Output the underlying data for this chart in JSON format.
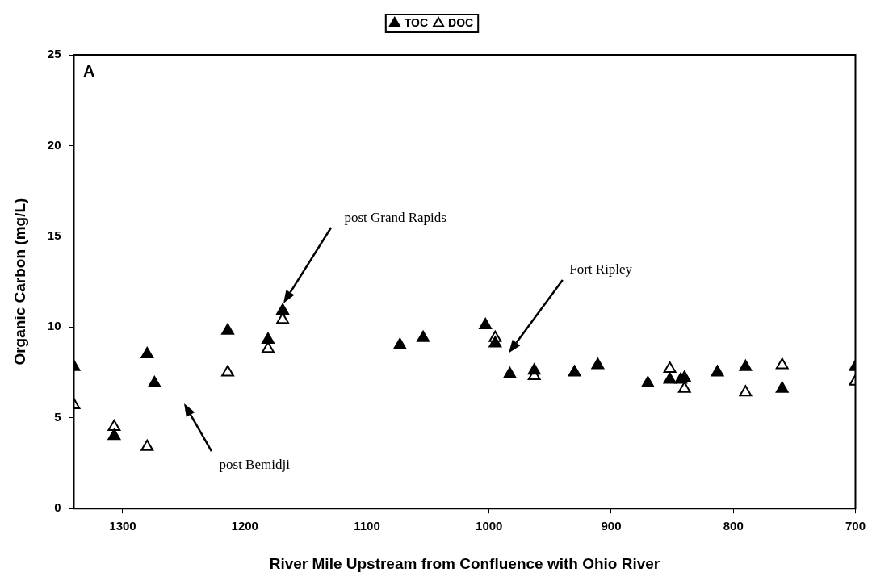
{
  "chart_data": {
    "type": "scatter",
    "xlabel": "River Mile Upstream from Confluence with Ohio River",
    "ylabel": "Organic Carbon (mg/L)",
    "xlim": [
      1340,
      700
    ],
    "xticks": [
      1300,
      1200,
      1100,
      1000,
      900,
      800,
      700
    ],
    "ylim": [
      0,
      25
    ],
    "yticks": [
      0,
      5,
      10,
      15,
      20,
      25
    ],
    "grid": false,
    "legend": "top",
    "marker": "triangle",
    "annotations": [
      "A",
      "post Grand Rapids",
      "post Bemidji",
      "Fort Ripley"
    ],
    "series": [
      {
        "name": "TOC",
        "color": "#000000",
        "x": [
          1340,
          1307,
          1280,
          1274,
          1214,
          1181,
          1169,
          1073,
          1054,
          1003,
          995,
          983,
          963,
          930,
          911,
          870,
          852,
          843,
          840,
          813,
          790,
          760,
          700
        ],
        "values": [
          7.8,
          4.0,
          8.5,
          6.9,
          9.8,
          9.3,
          10.9,
          9.0,
          9.4,
          10.1,
          9.1,
          7.4,
          7.6,
          7.5,
          7.9,
          6.9,
          7.1,
          7.1,
          7.2,
          7.5,
          7.8,
          6.6,
          7.8
        ]
      },
      {
        "name": "DOC",
        "color": "#ffffff",
        "x": [
          1340,
          1307,
          1280,
          1214,
          1181,
          1169,
          995,
          963,
          911,
          852,
          840,
          790,
          760,
          700
        ],
        "values": [
          5.7,
          4.5,
          3.4,
          7.5,
          8.8,
          10.4,
          9.4,
          7.3,
          null,
          7.7,
          6.6,
          6.4,
          7.9,
          7.0
        ]
      }
    ]
  }
}
